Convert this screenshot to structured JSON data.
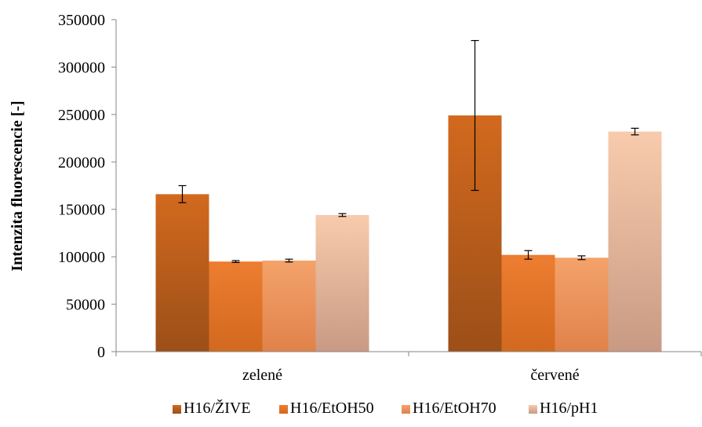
{
  "chart_data": {
    "type": "bar",
    "title": "",
    "xlabel": "",
    "ylabel": "Intenzita fluorescencie [-]",
    "ylim": [
      0,
      350000
    ],
    "yticks": [
      0,
      50000,
      100000,
      150000,
      200000,
      250000,
      300000,
      350000
    ],
    "grid": false,
    "legend_position": "bottom",
    "categories": [
      "zelené",
      "červené"
    ],
    "series": [
      {
        "name": "H16/ŽIVE",
        "values": [
          166000,
          249000
        ],
        "errors": [
          9000,
          79000
        ],
        "color_top": "#d2691e",
        "color_bottom": "#9c4f18"
      },
      {
        "name": "H16/EtOH50",
        "values": [
          95000,
          102000
        ],
        "errors": [
          1000,
          4500
        ],
        "color_top": "#ed7d31",
        "color_bottom": "#d2691e"
      },
      {
        "name": "H16/EtOH70",
        "values": [
          96000,
          99000
        ],
        "errors": [
          1500,
          2000
        ],
        "color_top": "#f4a26b",
        "color_bottom": "#e0824a"
      },
      {
        "name": "H16/pH1",
        "values": [
          144000,
          232000
        ],
        "errors": [
          1500,
          3500
        ],
        "color_top": "#f8cbad",
        "color_bottom": "#c99a83"
      }
    ]
  }
}
